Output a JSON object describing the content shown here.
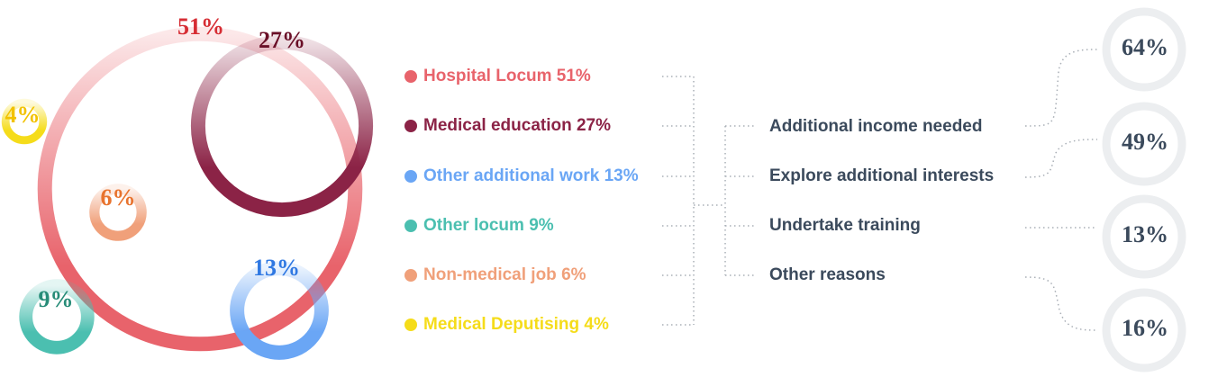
{
  "types": [
    {
      "name": "Hospital Locum",
      "value": 51,
      "value_label": "51%",
      "color": "#e8636b",
      "label_color": "#d62d34"
    },
    {
      "name": "Medical education",
      "value": 27,
      "value_label": "27%",
      "color": "#8b2346",
      "label_color": "#6a0f27"
    },
    {
      "name": "Other additional work",
      "value": 13,
      "value_label": "13%",
      "color": "#6aa6f5",
      "label_color": "#2f78e2"
    },
    {
      "name": "Other locum",
      "value": 9,
      "value_label": "9%",
      "color": "#4bbfb0",
      "label_color": "#278c78"
    },
    {
      "name": "Non-medical job",
      "value": 6,
      "value_label": "6%",
      "color": "#f0a07a",
      "label_color": "#e8732e"
    },
    {
      "name": "Medical Deputising",
      "value": 4,
      "value_label": "4%",
      "color": "#f5dc1a",
      "label_color": "#f2c200"
    }
  ],
  "reasons": [
    {
      "name": "Additional income needed",
      "value": 64,
      "value_label": "64%"
    },
    {
      "name": "Explore additional interests",
      "value": 49,
      "value_label": "49%"
    },
    {
      "name": "Undertake training",
      "value": 13,
      "value_label": "13%"
    },
    {
      "name": "Other reasons",
      "value": 16,
      "value_label": "16%"
    }
  ]
}
